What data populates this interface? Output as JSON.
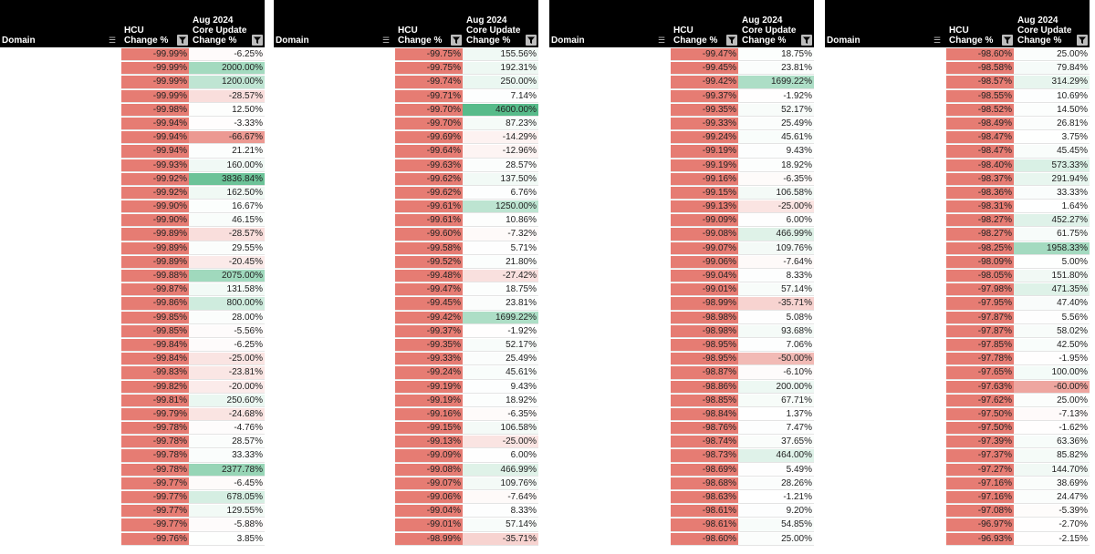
{
  "headers": {
    "domain": "Domain",
    "hcu_line1": "HCU",
    "hcu_line2": "Change %",
    "core_line1": "Aug 2024",
    "core_line2": "Core Update",
    "core_line3": "Change %"
  },
  "colors": {
    "hcu_fill": "#e67c73",
    "positive_strong": "#57bb8a",
    "negative_strong": "#e67c73",
    "neutral": "#ffffff"
  },
  "panels": [
    {
      "hcu": [
        "-99.99%",
        "-99.99%",
        "-99.99%",
        "-99.99%",
        "-99.98%",
        "-99.94%",
        "-99.94%",
        "-99.94%",
        "-99.93%",
        "-99.92%",
        "-99.92%",
        "-99.90%",
        "-99.90%",
        "-99.89%",
        "-99.89%",
        "-99.89%",
        "-99.88%",
        "-99.87%",
        "-99.86%",
        "-99.85%",
        "-99.85%",
        "-99.84%",
        "-99.84%",
        "-99.83%",
        "-99.82%",
        "-99.81%",
        "-99.79%",
        "-99.78%",
        "-99.78%",
        "-99.78%",
        "-99.78%",
        "-99.77%",
        "-99.77%",
        "-99.77%",
        "-99.77%",
        "-99.76%"
      ],
      "core": [
        "-6.25%",
        "2000.00%",
        "1200.00%",
        "-28.57%",
        "12.50%",
        "-3.33%",
        "-66.67%",
        "21.21%",
        "160.00%",
        "3836.84%",
        "162.50%",
        "16.67%",
        "46.15%",
        "-28.57%",
        "29.55%",
        "-20.45%",
        "2075.00%",
        "131.58%",
        "800.00%",
        "28.00%",
        "-5.56%",
        "-6.25%",
        "-25.00%",
        "-23.81%",
        "-20.00%",
        "250.60%",
        "-24.68%",
        "-4.76%",
        "28.57%",
        "33.33%",
        "2377.78%",
        "-6.45%",
        "678.05%",
        "129.55%",
        "-5.88%",
        "3.85%"
      ]
    },
    {
      "hcu": [
        "-99.75%",
        "-99.75%",
        "-99.74%",
        "-99.71%",
        "-99.70%",
        "-99.70%",
        "-99.69%",
        "-99.64%",
        "-99.63%",
        "-99.62%",
        "-99.62%",
        "-99.61%",
        "-99.61%",
        "-99.60%",
        "-99.58%",
        "-99.52%",
        "-99.48%",
        "-99.47%",
        "-99.45%",
        "-99.42%",
        "-99.37%",
        "-99.35%",
        "-99.33%",
        "-99.24%",
        "-99.19%",
        "-99.19%",
        "-99.16%",
        "-99.15%",
        "-99.13%",
        "-99.09%",
        "-99.08%",
        "-99.07%",
        "-99.06%",
        "-99.04%",
        "-99.01%",
        "-98.99%"
      ],
      "core": [
        "155.56%",
        "192.31%",
        "250.00%",
        "7.14%",
        "4600.00%",
        "87.23%",
        "-14.29%",
        "-12.96%",
        "28.57%",
        "137.50%",
        "6.76%",
        "1250.00%",
        "10.86%",
        "-7.32%",
        "5.71%",
        "21.80%",
        "-27.42%",
        "18.75%",
        "23.81%",
        "1699.22%",
        "-1.92%",
        "52.17%",
        "25.49%",
        "45.61%",
        "9.43%",
        "18.92%",
        "-6.35%",
        "106.58%",
        "-25.00%",
        "6.00%",
        "466.99%",
        "109.76%",
        "-7.64%",
        "8.33%",
        "57.14%",
        "-35.71%"
      ]
    },
    {
      "hcu": [
        "-99.47%",
        "-99.45%",
        "-99.42%",
        "-99.37%",
        "-99.35%",
        "-99.33%",
        "-99.24%",
        "-99.19%",
        "-99.19%",
        "-99.16%",
        "-99.15%",
        "-99.13%",
        "-99.09%",
        "-99.08%",
        "-99.07%",
        "-99.06%",
        "-99.04%",
        "-99.01%",
        "-98.99%",
        "-98.98%",
        "-98.98%",
        "-98.95%",
        "-98.95%",
        "-98.87%",
        "-98.86%",
        "-98.85%",
        "-98.84%",
        "-98.76%",
        "-98.74%",
        "-98.73%",
        "-98.69%",
        "-98.68%",
        "-98.63%",
        "-98.61%",
        "-98.61%",
        "-98.60%"
      ],
      "core": [
        "18.75%",
        "23.81%",
        "1699.22%",
        "-1.92%",
        "52.17%",
        "25.49%",
        "45.61%",
        "9.43%",
        "18.92%",
        "-6.35%",
        "106.58%",
        "-25.00%",
        "6.00%",
        "466.99%",
        "109.76%",
        "-7.64%",
        "8.33%",
        "57.14%",
        "-35.71%",
        "5.08%",
        "93.68%",
        "7.06%",
        "-50.00%",
        "-6.10%",
        "200.00%",
        "67.71%",
        "1.37%",
        "7.47%",
        "37.65%",
        "464.00%",
        "5.49%",
        "28.26%",
        "-1.21%",
        "9.20%",
        "54.85%",
        "25.00%"
      ]
    },
    {
      "hcu": [
        "-98.60%",
        "-98.58%",
        "-98.57%",
        "-98.55%",
        "-98.52%",
        "-98.49%",
        "-98.47%",
        "-98.47%",
        "-98.40%",
        "-98.37%",
        "-98.36%",
        "-98.31%",
        "-98.27%",
        "-98.27%",
        "-98.25%",
        "-98.09%",
        "-98.05%",
        "-97.98%",
        "-97.95%",
        "-97.87%",
        "-97.87%",
        "-97.85%",
        "-97.78%",
        "-97.65%",
        "-97.63%",
        "-97.62%",
        "-97.50%",
        "-97.50%",
        "-97.39%",
        "-97.37%",
        "-97.27%",
        "-97.16%",
        "-97.16%",
        "-97.08%",
        "-96.97%",
        "-96.93%"
      ],
      "core": [
        "25.00%",
        "79.84%",
        "314.29%",
        "10.69%",
        "14.50%",
        "26.81%",
        "3.75%",
        "45.45%",
        "573.33%",
        "291.94%",
        "33.33%",
        "1.64%",
        "452.27%",
        "61.75%",
        "1958.33%",
        "5.00%",
        "151.80%",
        "471.35%",
        "47.40%",
        "5.56%",
        "58.02%",
        "42.50%",
        "-1.95%",
        "100.00%",
        "-60.00%",
        "25.00%",
        "-7.13%",
        "-1.62%",
        "63.36%",
        "85.82%",
        "144.70%",
        "38.69%",
        "24.47%",
        "-5.39%",
        "-2.70%",
        "-2.15%"
      ]
    }
  ]
}
